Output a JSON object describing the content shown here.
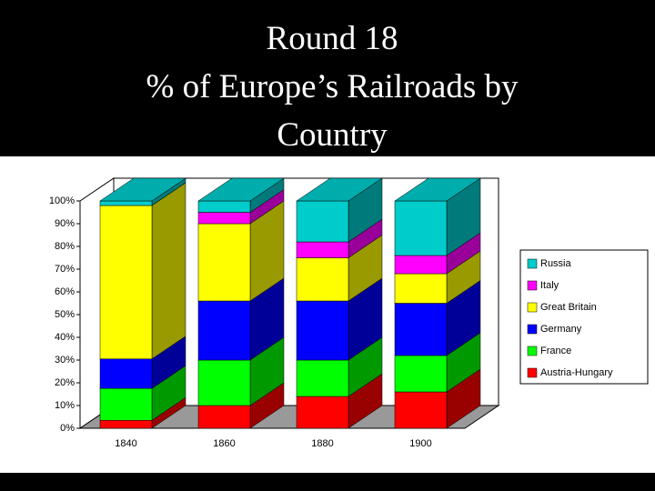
{
  "chart_data": {
    "type": "bar3d_stacked",
    "title": "Round 18",
    "subtitle": "% of Europe’s Railroads by Country",
    "categories": [
      "1840",
      "1860",
      "1880",
      "1900"
    ],
    "series": [
      {
        "name": "Austria-Hungary",
        "color": "#ff0000",
        "values": [
          3.5,
          10,
          14,
          16
        ]
      },
      {
        "name": "France",
        "color": "#00ff00",
        "values": [
          14,
          20,
          16,
          16
        ]
      },
      {
        "name": "Germany",
        "color": "#0000ff",
        "values": [
          13,
          26,
          26,
          23
        ]
      },
      {
        "name": "Great Britain",
        "color": "#ffff00",
        "values": [
          67.5,
          34,
          19,
          13
        ]
      },
      {
        "name": "Italy",
        "color": "#ff00ff",
        "values": [
          0,
          5,
          7,
          8
        ]
      },
      {
        "name": "Russia",
        "color": "#00cccc",
        "values": [
          2,
          5,
          18,
          24
        ]
      }
    ],
    "ylim": [
      0,
      100
    ],
    "yticks": [
      {
        "value": 0,
        "label": "0%"
      },
      {
        "value": 10,
        "label": "10%"
      },
      {
        "value": 20,
        "label": "20%"
      },
      {
        "value": 30,
        "label": "30%"
      },
      {
        "value": 40,
        "label": "40%"
      },
      {
        "value": 50,
        "label": "50%"
      },
      {
        "value": 60,
        "label": "60%"
      },
      {
        "value": 70,
        "label": "70%"
      },
      {
        "value": 80,
        "label": "80%"
      },
      {
        "value": 90,
        "label": "90%"
      },
      {
        "value": 100,
        "label": "100%"
      }
    ],
    "grid": false,
    "legend": "right"
  }
}
